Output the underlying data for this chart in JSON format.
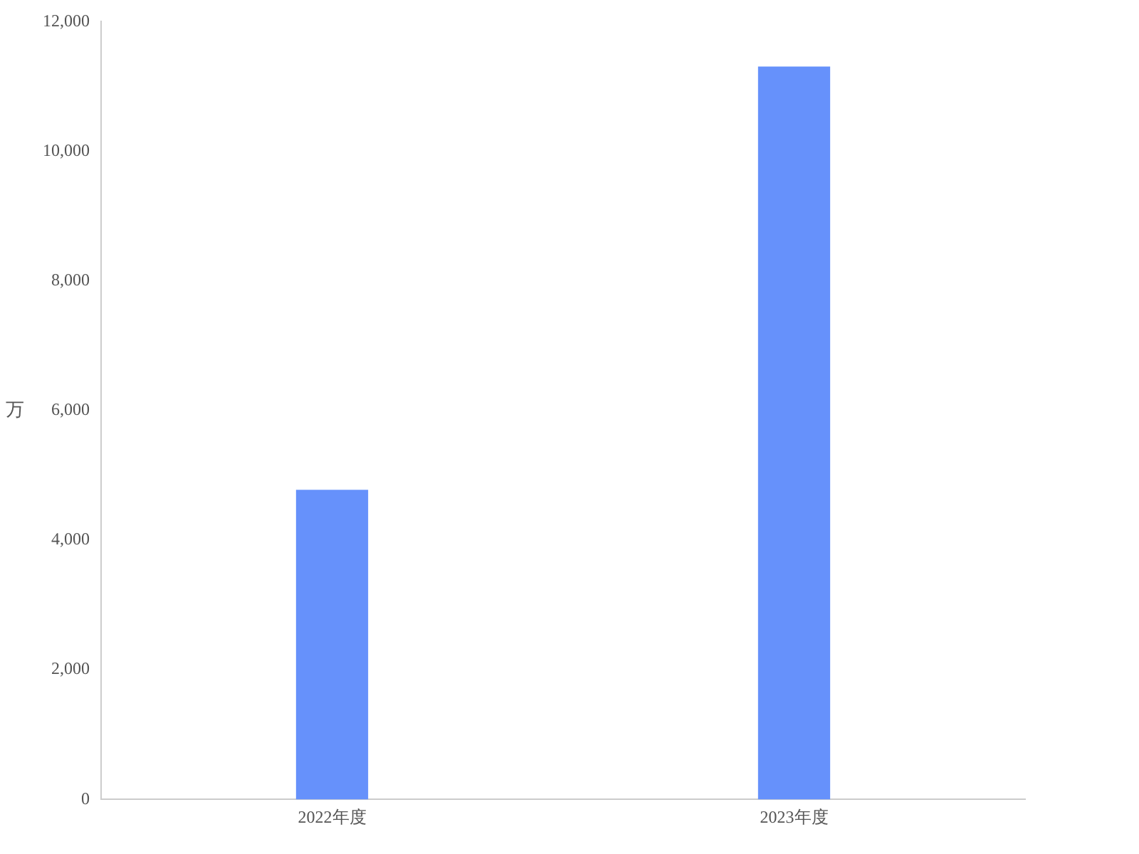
{
  "chart_data": {
    "type": "bar",
    "ylabel": "万",
    "categories": [
      "2022年度",
      "2023年度"
    ],
    "values": [
      4770,
      11300
    ],
    "color": "#6691fb",
    "ylim": [
      0,
      12000
    ],
    "yticks": [
      0,
      {
        "value": 2000,
        "label": "2,000"
      },
      {
        "value": 4000,
        "label": "4,000"
      },
      {
        "value": 6000,
        "label": "6,000"
      },
      {
        "value": 8000,
        "label": "8,000"
      },
      {
        "value": 10000,
        "label": "10,000"
      },
      {
        "value": 12000,
        "label": "12,000"
      }
    ],
    "grid": false,
    "legend": false
  }
}
